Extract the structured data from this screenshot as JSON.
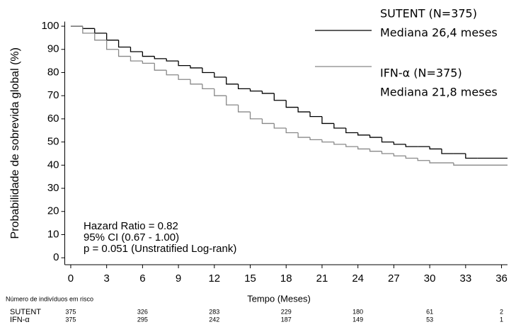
{
  "chart_data": {
    "type": "step",
    "ylabel": "Probabilidade de sobrevida global (%)",
    "xlabel": "Tempo (Meses)",
    "xlim": [
      -0.5,
      36.5
    ],
    "ylim": [
      -3,
      102
    ],
    "xticks": [
      0,
      3,
      6,
      9,
      12,
      15,
      18,
      21,
      24,
      27,
      30,
      33,
      36
    ],
    "yticks": [
      0,
      10,
      20,
      30,
      40,
      50,
      60,
      70,
      80,
      90,
      100
    ],
    "series": [
      {
        "name": "SUTENT (N=375)",
        "median": "Mediana 26,4 meses",
        "color": "#000000",
        "x": [
          0,
          1,
          2,
          3,
          4,
          5,
          6,
          7,
          8,
          9,
          10,
          11,
          12,
          13,
          14,
          15,
          16,
          17,
          18,
          19,
          20,
          21,
          22,
          23,
          24,
          25,
          26,
          27,
          28,
          29,
          30,
          31,
          32,
          33,
          34,
          36.5
        ],
        "y": [
          100,
          99,
          97,
          94,
          91,
          89,
          87,
          86,
          85,
          83,
          82,
          80,
          78,
          75,
          73,
          72,
          71,
          68,
          65,
          63,
          61,
          58,
          56,
          54,
          53,
          52,
          50,
          49,
          48,
          48,
          47,
          45,
          45,
          43,
          43,
          43
        ]
      },
      {
        "name": "IFN-α (N=375)",
        "median": "Mediana 21,8 meses",
        "color": "#888888",
        "x": [
          0,
          1,
          2,
          3,
          4,
          5,
          6,
          7,
          8,
          9,
          10,
          11,
          12,
          13,
          14,
          15,
          16,
          17,
          18,
          19,
          20,
          21,
          22,
          23,
          24,
          25,
          26,
          27,
          28,
          29,
          30,
          31,
          32,
          36.5
        ],
        "y": [
          100,
          97,
          94,
          90,
          87,
          85,
          84,
          81,
          79,
          77,
          75,
          73,
          70,
          66,
          63,
          60,
          58,
          56,
          54,
          52,
          51,
          50,
          49,
          48,
          47,
          46,
          45,
          44,
          43,
          42,
          41,
          41,
          40,
          40
        ]
      }
    ],
    "annotations": [
      "Hazard Ratio = 0.82",
      "95% CI (0.67 - 1.00)",
      "p = 0.051 (Unstratified Log-rank)"
    ],
    "risk_table": {
      "title": "Número de indivíduos em risco",
      "rows": [
        {
          "label": "SUTENT",
          "values": [
            375,
            326,
            283,
            229,
            180,
            61,
            2
          ]
        },
        {
          "label": "IFN-α",
          "values": [
            375,
            295,
            242,
            187,
            149,
            53,
            1
          ]
        }
      ]
    }
  }
}
